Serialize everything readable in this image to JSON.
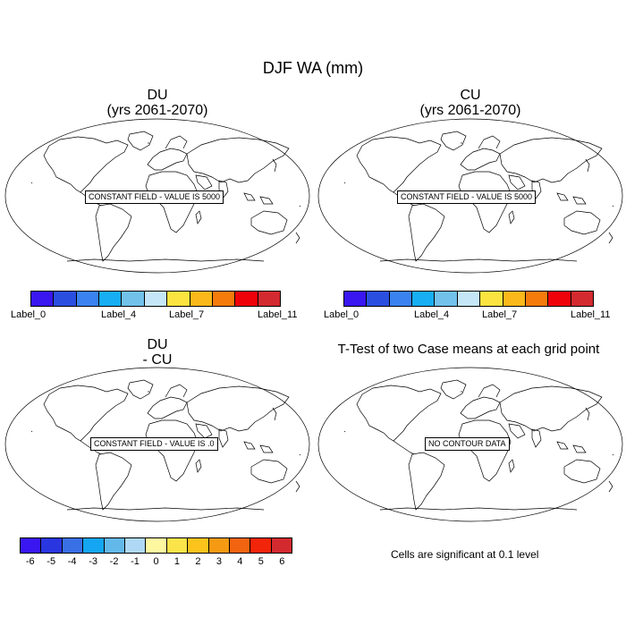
{
  "title": "DJF WA (mm)",
  "panels": {
    "du": {
      "line1": "DU",
      "line2": "(yrs 2061-2070)",
      "box": "CONSTANT FIELD - VALUE IS 5000"
    },
    "cu": {
      "line1": "CU",
      "line2": "(yrs 2061-2070)",
      "box": "CONSTANT FIELD - VALUE IS 5000"
    },
    "diff": {
      "line1": "DU",
      "line2": "- CU",
      "box": "CONSTANT FIELD - VALUE IS .0"
    },
    "ttest": {
      "title": "T-Test of two Case means at each grid point",
      "box": "NO CONTOUR DATA",
      "note": "Cells are significant at 0.1 level"
    }
  },
  "colorbars": {
    "top": {
      "colors": [
        "#3a16f0",
        "#2a4fe0",
        "#3a82f0",
        "#17aef4",
        "#71c1ea",
        "#c4e6f6",
        "#fbe440",
        "#fbb81a",
        "#f57b0c",
        "#f0020a",
        "#d22a2f"
      ],
      "labels": [
        "Label_0",
        "Label_4",
        "Label_7",
        "Label_11"
      ]
    },
    "diff": {
      "colors": [
        "#3a16f0",
        "#2a36e0",
        "#3a70e6",
        "#14a6f2",
        "#63b8ea",
        "#aed8f6",
        "#fdf8a0",
        "#fbe44a",
        "#fbc31c",
        "#f59a12",
        "#f26410",
        "#f2240a",
        "#d22a2f"
      ],
      "labels": [
        "-6",
        "-5",
        "-4",
        "-3",
        "-2",
        "-1",
        "0",
        "1",
        "2",
        "3",
        "4",
        "5",
        "6"
      ]
    }
  }
}
